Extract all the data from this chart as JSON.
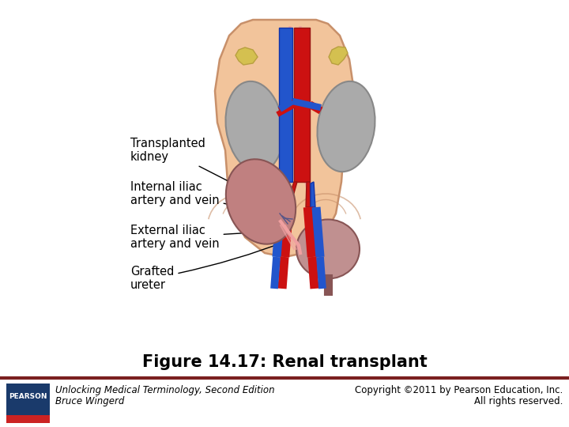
{
  "title": "Figure 14.17: Renal transplant",
  "footer_left_line1": "Unlocking Medical Terminology, Second Edition",
  "footer_left_line2": "Bruce Wingerd",
  "footer_right_line1": "Copyright ©2011 by Pearson Education, Inc.",
  "footer_right_line2": "All rights reserved.",
  "bg_color": "#ffffff",
  "body_fill": "#F2C49B",
  "body_edge": "#C8906A",
  "kidney_fill": "#AAAAAA",
  "kidney_edge": "#888888",
  "adrenal_fill": "#D4C050",
  "adrenal_edge": "#B8A040",
  "transplant_fill": "#C08080",
  "transplant_edge": "#885555",
  "bladder_fill": "#C09090",
  "bladder_edge": "#885555",
  "artery_color": "#CC1111",
  "vein_color": "#2255CC",
  "ureter_color": "#F0A0A0",
  "divider_color": "#7B2020",
  "pearson_bg": "#1a3a6b",
  "pearson_stripe": "#cc2222",
  "label_color": "#000000",
  "title_fontsize": 15,
  "footer_fontsize": 8.5
}
